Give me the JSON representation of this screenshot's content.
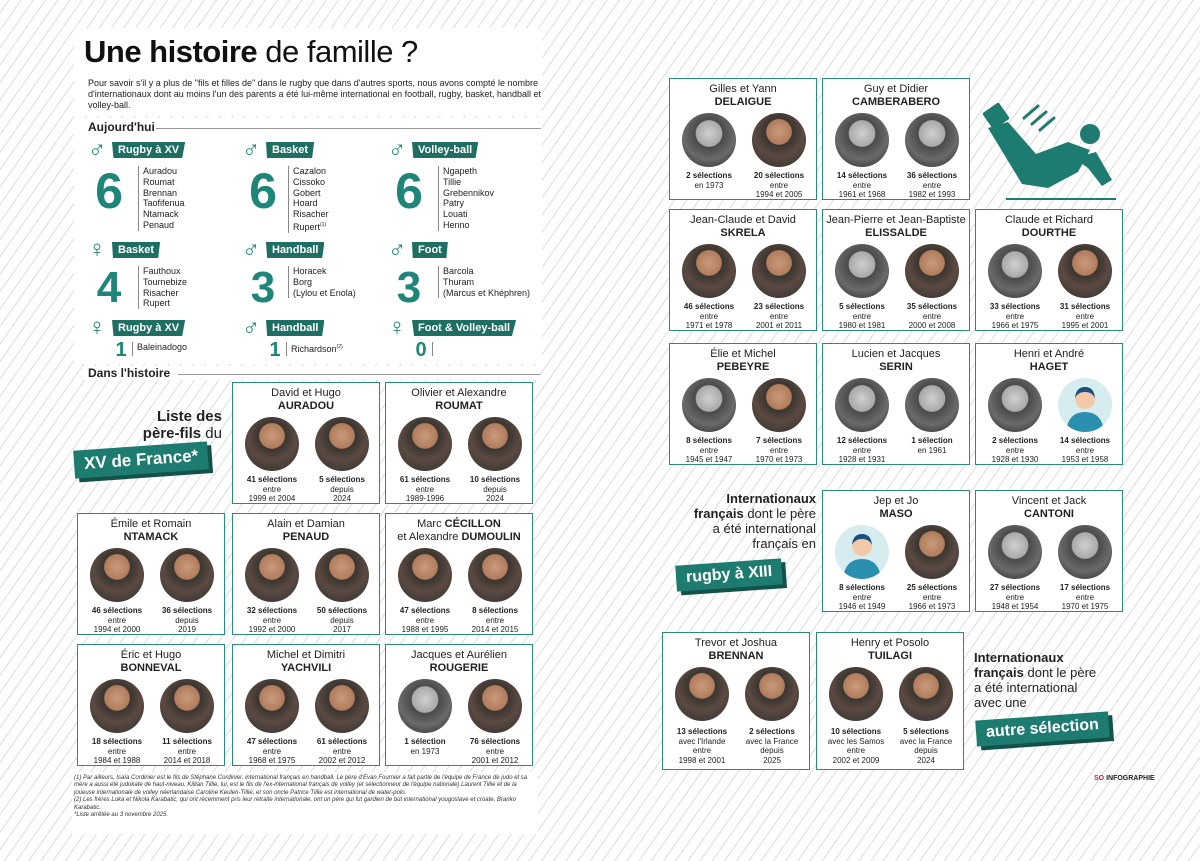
{
  "header": {
    "title_bold": "Une histoire",
    "title_rest": " de famille ?",
    "intro": "Pour savoir s'il y a plus de \"fils et filles de\" dans le rugby que dans d'autres sports, nous avons compté le nombre d'internationaux  dont au moins l'un des parents a été lui-même international en football, rugby, basket, handball et volley-ball."
  },
  "today": {
    "heading": "Aujourd'hui",
    "groups": [
      {
        "symbol": "♂",
        "sport": "Rugby à XV",
        "count": "6",
        "names": [
          "Auradou",
          "Roumat",
          "Brennan",
          "Taofifenua",
          "Ntamack",
          "Penaud"
        ]
      },
      {
        "symbol": "♂",
        "sport": "Basket",
        "count": "6",
        "names": [
          "Cazalon",
          "Cissoko",
          "Gobert",
          "Hoard",
          "Risacher",
          "Rupert"
        ],
        "sup": "(1)"
      },
      {
        "symbol": "♂",
        "sport": "Volley-ball",
        "count": "6",
        "names": [
          "Ngapeth",
          "Tillie",
          "Grebennikov",
          "Patry",
          "Louati",
          "Henno"
        ]
      },
      {
        "symbol": "♀",
        "sport": "Basket",
        "count": "4",
        "names": [
          "Fauthoux",
          "Tournebize",
          "Risacher",
          "Rupert"
        ]
      },
      {
        "symbol": "♂",
        "sport": "Handball",
        "count": "3",
        "names": [
          "Horacek",
          "Borg",
          "(Lylou et Enola)"
        ]
      },
      {
        "symbol": "♂",
        "sport": "Foot",
        "count": "3",
        "names": [
          "Barcola",
          "Thuram",
          "(Marcus et Khéphren)"
        ]
      },
      {
        "symbol": "♀",
        "sport": "Rugby à XV",
        "count": "1",
        "names": [
          "Baleinadogo"
        ]
      },
      {
        "symbol": "♂",
        "sport": "Handball",
        "count": "1",
        "names": [
          "Richardson"
        ],
        "sup": "(2)"
      },
      {
        "symbol": "♀",
        "sport": "Foot & Volley-ball",
        "count": "0",
        "names": []
      }
    ]
  },
  "history": {
    "heading": "Dans l'histoire"
  },
  "labels": {
    "xv_line1": "Liste des",
    "xv_line2_b": "père-fils",
    "xv_line2_r": " du",
    "xv_ribbon": "XV de France*",
    "xiii_l1": "Internationaux",
    "xiii_l2_b": "français",
    "xiii_l2_r": " dont le père",
    "xiii_l3": "a été international",
    "xiii_l4": "français en",
    "xiii_ribbon": "rugby à XIII",
    "other_l1": "Internationaux",
    "other_l2_b": "français",
    "other_l2_r": " dont le père",
    "other_l3": "a été international",
    "other_l4": "avec une",
    "other_ribbon": "autre sélection"
  },
  "cards": [
    {
      "id": "auradou",
      "first": "David et Hugo",
      "last": "AURADOU",
      "a": [
        "41 sélections",
        "entre",
        "1999 et 2004"
      ],
      "b": [
        "5 sélections",
        "depuis",
        "2024"
      ]
    },
    {
      "id": "roumat",
      "first": "Olivier et Alexandre",
      "last": "ROUMAT",
      "a": [
        "61 sélections",
        "entre",
        "1989-1996"
      ],
      "b": [
        "10 sélections",
        "depuis",
        "2024"
      ]
    },
    {
      "id": "ntamack",
      "first": "Émile et Romain",
      "last": "NTAMACK",
      "a": [
        "46 sélections",
        "entre",
        "1994 et 2000"
      ],
      "b": [
        "36 sélections",
        "depuis",
        "2019"
      ]
    },
    {
      "id": "penaud",
      "first": "Alain et Damian",
      "last": "PENAUD",
      "a": [
        "32 sélections",
        "entre",
        "1992 et 2000"
      ],
      "b": [
        "50 sélections",
        "depuis",
        "2017"
      ]
    },
    {
      "id": "cecillon",
      "first": "Marc ",
      "firstb": "CÉCILLON",
      "mid": "et Alexandre ",
      "last": "DUMOULIN",
      "a": [
        "47 sélections",
        "entre",
        "1988 et 1995"
      ],
      "b": [
        "8 sélections",
        "entre",
        "2014 et 2015"
      ]
    },
    {
      "id": "bonneval",
      "first": "Éric et Hugo",
      "last": "BONNEVAL",
      "a": [
        "18 sélections",
        "entre",
        "1984 et 1988"
      ],
      "b": [
        "11 sélections",
        "entre",
        "2014 et 2018"
      ]
    },
    {
      "id": "yachvili",
      "first": "Michel et Dimitri",
      "last": "YACHVILI",
      "a": [
        "47 sélections",
        "entre",
        "1968 et 1975"
      ],
      "b": [
        "61 sélections",
        "entre",
        "2002 et 2012"
      ]
    },
    {
      "id": "rougerie",
      "first": "Jacques et Aurélien",
      "last": "ROUGERIE",
      "a": [
        "1 sélection",
        "en 1973"
      ],
      "b": [
        "76 sélections",
        "entre",
        "2001 et 2012"
      ]
    },
    {
      "id": "delaigue",
      "first": "Gilles et Yann",
      "last": "DELAIGUE",
      "a": [
        "2 sélections",
        "en 1973"
      ],
      "b": [
        "20 sélections",
        "entre",
        "1994 et 2005"
      ]
    },
    {
      "id": "camberabero",
      "first": "Guy et Didier",
      "last": "CAMBERABERO",
      "a": [
        "14 sélections",
        "entre",
        "1961 et 1968"
      ],
      "b": [
        "36 sélections",
        "entre",
        "1982 et 1993"
      ]
    },
    {
      "id": "skrela",
      "first": "Jean-Claude et David",
      "last": "SKRELA",
      "a": [
        "46 sélections",
        "entre",
        "1971 et 1978"
      ],
      "b": [
        "23 sélections",
        "entre",
        "2001 et 2011"
      ]
    },
    {
      "id": "elissalde",
      "first": "Jean-Pierre et Jean-Baptiste",
      "last": "ELISSALDE",
      "a": [
        "5 sélections",
        "entre",
        "1980 et 1981"
      ],
      "b": [
        "35 sélections",
        "entre",
        "2000 et 2008"
      ]
    },
    {
      "id": "dourthe",
      "first": "Claude et Richard",
      "last": "DOURTHE",
      "a": [
        "33 sélections",
        "entre",
        "1966 et 1975"
      ],
      "b": [
        "31 sélections",
        "entre",
        "1995 et 2001"
      ]
    },
    {
      "id": "pebeyre",
      "first": "Élie et Michel",
      "last": "PEBEYRE",
      "a": [
        "8 sélections",
        "entre",
        "1945 et 1947"
      ],
      "b": [
        "7 sélections",
        "entre",
        "1970 et 1973"
      ]
    },
    {
      "id": "serin",
      "first": "Lucien et Jacques",
      "last": "SERIN",
      "a": [
        "12 sélections",
        "entre",
        "1928 et 1931"
      ],
      "b": [
        "1 sélection",
        "en 1961"
      ]
    },
    {
      "id": "haget",
      "first": "Henri et André",
      "last": "HAGET",
      "a": [
        "2 sélections",
        "entre",
        "1928 et 1930"
      ],
      "b": [
        "14 sélections",
        "entre",
        "1953 et 1958"
      ]
    },
    {
      "id": "maso",
      "first": "Jep et Jo",
      "last": "MASO",
      "a": [
        "8 sélections",
        "entre",
        "1946 et 1949"
      ],
      "b": [
        "25 sélections",
        "entre",
        "1966 et 1973"
      ]
    },
    {
      "id": "cantoni",
      "first": "Vincent et Jack",
      "last": "CANTONI",
      "a": [
        "27 sélections",
        "entre",
        "1948 et 1954"
      ],
      "b": [
        "17 sélections",
        "entre",
        "1970 et 1975"
      ]
    },
    {
      "id": "brennan",
      "first": "Trevor et Joshua",
      "last": "BRENNAN",
      "a": [
        "13 sélections",
        "avec l'Irlande",
        "entre",
        "1998 et 2001"
      ],
      "b": [
        "2 sélections",
        "avec la France",
        "depuis",
        "2025"
      ]
    },
    {
      "id": "tuilagi",
      "first": "Henry et Posolo",
      "last": "TUILAGI",
      "a": [
        "10 sélections",
        "avec les Samos",
        "entre",
        "2002 et 2009"
      ],
      "b": [
        "5 sélections",
        "avec la France",
        "depuis",
        "2024"
      ]
    }
  ],
  "footnotes": [
    "(1) Par ailleurs, Isaïa Cordinier est le fils de Stéphane Cordinier, international français en handball. Le père d'Evan Fournier a fait partie de l'équipe de France de judo et sa mère a aussi été judokate de haut-niveau. Killian Tillie, lui, est le fils de l'ex-international français de volley (et sélectionneur de l'équipe nationale) Laurent Tillie et de la joueuse internationale de volley néerlandaise Caroline Keulen-Tillie, et son oncle Patrice Tillie est international de water-polo.",
    "(2) Les frères Luka et Nikola Karabatic, qui ont récemment pris leur retraite internationale, ont un père qui fut gardien de but international yougoslave et croate, Branko Karabatic.",
    "*Liste arrêtée au 3 novembre 2025."
  ],
  "logo": {
    "so": "SO",
    "rest": " INFOGRAPHIE"
  },
  "colors": {
    "accent": "#1e8578",
    "ribbon": "#1e6e63"
  }
}
